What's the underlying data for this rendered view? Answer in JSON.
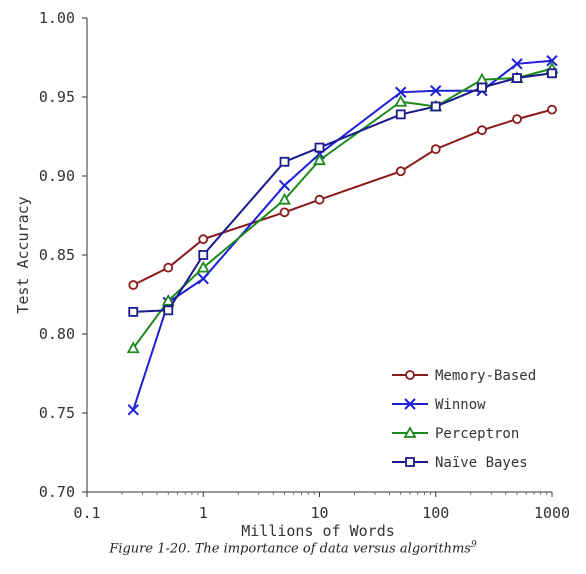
{
  "chart_data": {
    "type": "line",
    "xscale": "log",
    "xlim": [
      0.1,
      1000
    ],
    "ylim": [
      0.7,
      1.0
    ],
    "xticks": [
      0.1,
      1,
      10,
      100,
      1000
    ],
    "xtick_labels": [
      "0.1",
      "1",
      "10",
      "100",
      "1000"
    ],
    "yticks": [
      0.7,
      0.75,
      0.8,
      0.85,
      0.9,
      0.95,
      1.0
    ],
    "ytick_labels": [
      "0.70",
      "0.75",
      "0.80",
      "0.85",
      "0.90",
      "0.95",
      "1.00"
    ],
    "xlabel": "Millions of Words",
    "ylabel": "Test Accuracy",
    "grid": false,
    "legend_position": "bottom-right",
    "x": [
      0.25,
      0.5,
      1,
      5,
      10,
      50,
      100,
      250,
      500,
      1000
    ],
    "series": [
      {
        "name": "Memory-Based",
        "color": "#8b1a1a",
        "marker": "circle",
        "values": [
          0.831,
          0.842,
          0.86,
          0.877,
          0.885,
          0.903,
          0.917,
          0.929,
          0.936,
          0.942
        ]
      },
      {
        "name": "Winnow",
        "color": "#1f1fd6",
        "marker": "x",
        "values": [
          0.752,
          0.82,
          0.835,
          0.894,
          0.914,
          0.953,
          0.954,
          0.954,
          0.971,
          0.973
        ]
      },
      {
        "name": "Perceptron",
        "color": "#1e8a1e",
        "marker": "triangle",
        "values": [
          0.791,
          0.821,
          0.842,
          0.885,
          0.91,
          0.947,
          0.944,
          0.961,
          0.962,
          0.968
        ]
      },
      {
        "name": "Naïve Bayes",
        "color": "#1a1a8c",
        "marker": "square",
        "values": [
          0.814,
          0.815,
          0.85,
          0.909,
          0.918,
          0.939,
          0.944,
          0.956,
          0.962,
          0.965
        ]
      }
    ]
  },
  "caption": {
    "text": "Figure 1-20. The importance of data versus algorithms",
    "footnote": "9"
  }
}
